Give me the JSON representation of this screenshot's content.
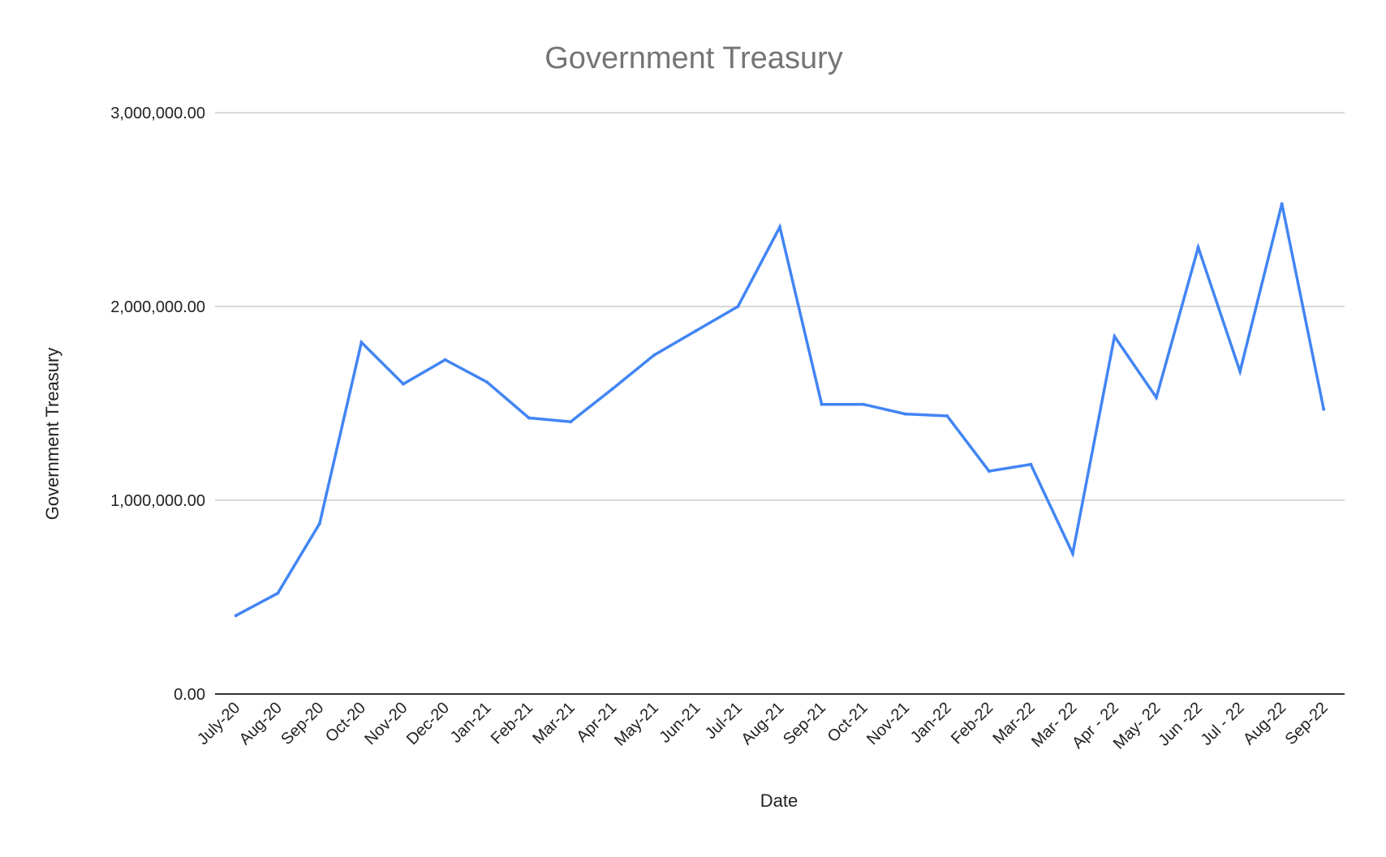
{
  "chart_data": {
    "type": "line",
    "title": "Government Treasury",
    "xlabel": "Date",
    "ylabel": "Government Treasury",
    "ylim": [
      0,
      3000000
    ],
    "yticks": [
      {
        "value": 0,
        "label": "0.00"
      },
      {
        "value": 1000000,
        "label": "1,000,000.00"
      },
      {
        "value": 2000000,
        "label": "2,000,000.00"
      },
      {
        "value": 3000000,
        "label": "3,000,000.00"
      }
    ],
    "grid": true,
    "legend": "none",
    "colors": {
      "series": "#4285f4",
      "title": "#757575",
      "text": "#222222",
      "grid": "#cccccc",
      "axis": "#333333"
    },
    "categories": [
      "July-20",
      "Aug-20",
      "Sep-20",
      "Oct-20",
      "Nov-20",
      "Dec-20",
      "Jan-21",
      "Feb-21",
      "Mar-21",
      "Apr-21",
      "May-21",
      "Jun-21",
      "Jul-21",
      "Aug-21",
      "Sep-21",
      "Oct-21",
      "Nov-21",
      "Jan-22",
      "Feb-22",
      "Mar-22",
      "Mar- 22",
      "Apr - 22",
      "May- 22",
      "Jun -22",
      "Jul - 22",
      "Aug-22",
      "Sep-22"
    ],
    "series": [
      {
        "values": [
          405000,
          520000,
          880000,
          1815000,
          1600000,
          1725000,
          1610000,
          1425000,
          1405000,
          1575000,
          1750000,
          1875000,
          2000000,
          2410000,
          1495000,
          1495000,
          1445000,
          1435000,
          1150000,
          1185000,
          725000,
          1845000,
          1530000,
          2305000,
          1665000,
          2530000,
          1470000
        ]
      }
    ]
  }
}
